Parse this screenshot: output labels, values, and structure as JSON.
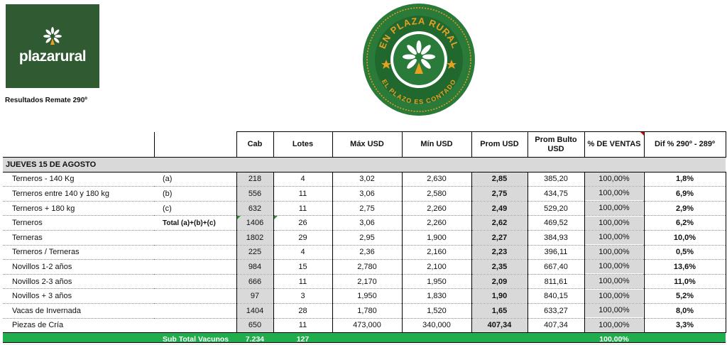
{
  "header": {
    "logo_text": "plazarural",
    "subtitle": "Resultados Remate 290º",
    "seal": {
      "top_text": "EN PLAZA RURAL",
      "bottom_text": "EL PLAZO ES CONTADO"
    }
  },
  "colors": {
    "brand_green": "#2f5a32",
    "seal_green": "#2a7a3a",
    "seal_gold": "#e8a020",
    "total_green": "#1fae4b",
    "grey": "#d9d9d9"
  },
  "columns": {
    "cab": "Cab",
    "lotes": "Lotes",
    "max": "Máx USD",
    "min": "Mín USD",
    "prom": "Prom USD",
    "prom_bulto": "Prom Bulto USD",
    "ventas": "% DE VENTAS",
    "dif": "Dif % 290º - 289º"
  },
  "section": {
    "title": "JUEVES 15 DE AGOSTO"
  },
  "rows": [
    {
      "name": "Terneros - 140 Kg",
      "note": "(a)",
      "cab": "218",
      "lotes": "4",
      "max": "3,02",
      "min": "2,630",
      "prom": "2,85",
      "bulto": "385,20",
      "ventas": "100,00%",
      "dif": "1,8%"
    },
    {
      "name": "Terneros entre 140 y 180 kg",
      "note": "(b)",
      "cab": "556",
      "lotes": "11",
      "max": "3,06",
      "min": "2,580",
      "prom": "2,75",
      "bulto": "434,75",
      "ventas": "100,00%",
      "dif": "6,9%"
    },
    {
      "name": "Terneros + 180 kg",
      "note": "(c)",
      "cab": "632",
      "lotes": "11",
      "max": "2,75",
      "min": "2,260",
      "prom": "2,49",
      "bulto": "529,20",
      "ventas": "100,00%",
      "dif": "2,9%"
    },
    {
      "name": "Terneros",
      "note": "Total (a)+(b)+(c)",
      "cab": "1406",
      "lotes": "26",
      "max": "3,06",
      "min": "2,260",
      "prom": "2,62",
      "bulto": "469,52",
      "ventas": "100,00%",
      "dif": "6,2%"
    },
    {
      "name": "Terneras",
      "note": "",
      "cab": "1802",
      "lotes": "29",
      "max": "2,95",
      "min": "1,900",
      "prom": "2,27",
      "bulto": "384,93",
      "ventas": "100,00%",
      "dif": "10,0%"
    },
    {
      "name": "Terneros / Terneras",
      "note": "",
      "cab": "225",
      "lotes": "4",
      "max": "2,36",
      "min": "2,160",
      "prom": "2,23",
      "bulto": "396,11",
      "ventas": "100,00%",
      "dif": "0,5%"
    },
    {
      "name": "Novillos 1-2 años",
      "note": "",
      "cab": "984",
      "lotes": "15",
      "max": "2,780",
      "min": "2,100",
      "prom": "2,35",
      "bulto": "667,40",
      "ventas": "100,00%",
      "dif": "13,6%"
    },
    {
      "name": "Novillos 2-3 años",
      "note": "",
      "cab": "666",
      "lotes": "11",
      "max": "2,170",
      "min": "1,950",
      "prom": "2,09",
      "bulto": "811,61",
      "ventas": "100,00%",
      "dif": "11,0%"
    },
    {
      "name": "Novillos + 3 años",
      "note": "",
      "cab": "97",
      "lotes": "3",
      "max": "1,950",
      "min": "1,830",
      "prom": "1,90",
      "bulto": "840,15",
      "ventas": "100,00%",
      "dif": "5,2%"
    },
    {
      "name": "Vacas de Invernada",
      "note": "",
      "cab": "1404",
      "lotes": "28",
      "max": "1,780",
      "min": "1,520",
      "prom": "1,65",
      "bulto": "633,27",
      "ventas": "100,00%",
      "dif": "8,0%"
    },
    {
      "name": "Piezas de Cría",
      "note": "",
      "cab": "650",
      "lotes": "11",
      "max": "473,000",
      "min": "340,000",
      "prom": "407,34",
      "bulto": "407,34",
      "ventas": "100,00%",
      "dif": "3,3%"
    }
  ],
  "total": {
    "label": "Sub Total Vacunos",
    "cab": "7.234",
    "lotes": "127",
    "ventas": "100,00%"
  }
}
